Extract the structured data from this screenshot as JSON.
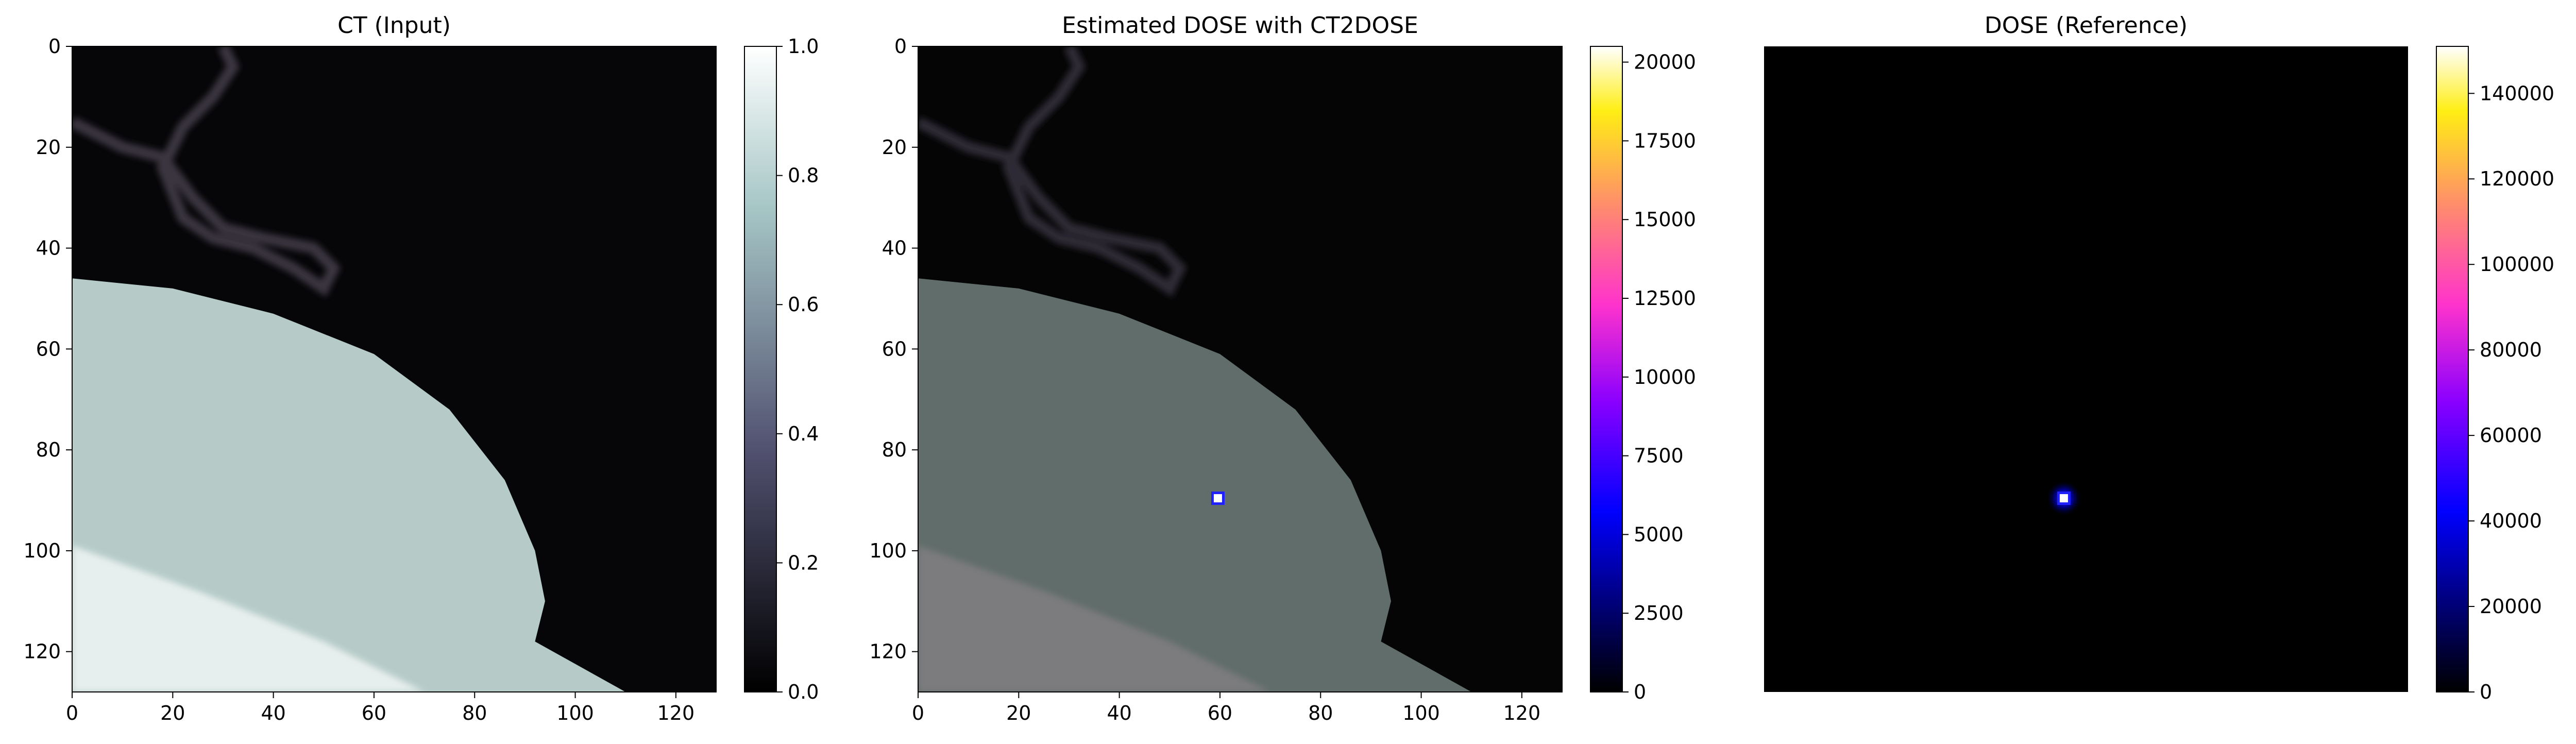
{
  "chart_data": [
    {
      "type": "heatmap",
      "title": "CT (Input)",
      "colormap": "bone",
      "xlim": [
        0,
        128
      ],
      "ylim": [
        128,
        0
      ],
      "x_ticks": [
        "0",
        "20",
        "40",
        "60",
        "80",
        "100",
        "120"
      ],
      "y_ticks": [
        "0",
        "20",
        "40",
        "60",
        "80",
        "100",
        "120"
      ],
      "colorbar": {
        "min": 0.0,
        "max": 1.0,
        "ticks": [
          "0.0",
          "0.2",
          "0.4",
          "0.6",
          "0.8",
          "1.0"
        ]
      },
      "content": {
        "background_value": 0.03,
        "boundary_points": [
          [
            0,
            46
          ],
          [
            20,
            48
          ],
          [
            40,
            53
          ],
          [
            60,
            61
          ],
          [
            75,
            72
          ],
          [
            86,
            86
          ],
          [
            92,
            100
          ],
          [
            94,
            110
          ],
          [
            92,
            118
          ],
          [
            110,
            128
          ]
        ],
        "region_value": 0.82,
        "structure_value": 0.97
      }
    },
    {
      "type": "heatmap",
      "title": "Estimated DOSE with CT2DOSE",
      "colormap": "gnuplot2",
      "xlim": [
        0,
        128
      ],
      "ylim": [
        128,
        0
      ],
      "x_ticks": [
        "0",
        "20",
        "40",
        "60",
        "80",
        "100",
        "120"
      ],
      "y_ticks": [
        "0",
        "20",
        "40",
        "60",
        "80",
        "100",
        "120"
      ],
      "colorbar": {
        "min": 0,
        "max": 20500,
        "ticks": [
          "0",
          "2500",
          "5000",
          "7500",
          "10000",
          "12500",
          "15000",
          "17500",
          "20000"
        ]
      },
      "hotspot": {
        "x": 60,
        "y": 90
      }
    },
    {
      "type": "heatmap",
      "title": "DOSE (Reference)",
      "colormap": "gnuplot2",
      "xlim": [
        0,
        128
      ],
      "ylim": [
        128,
        0
      ],
      "axes_visible": false,
      "colorbar": {
        "min": 0,
        "max": 151000,
        "ticks": [
          "0",
          "20000",
          "40000",
          "60000",
          "80000",
          "100000",
          "120000",
          "140000"
        ]
      },
      "hotspot": {
        "x": 60,
        "y": 90
      }
    }
  ]
}
